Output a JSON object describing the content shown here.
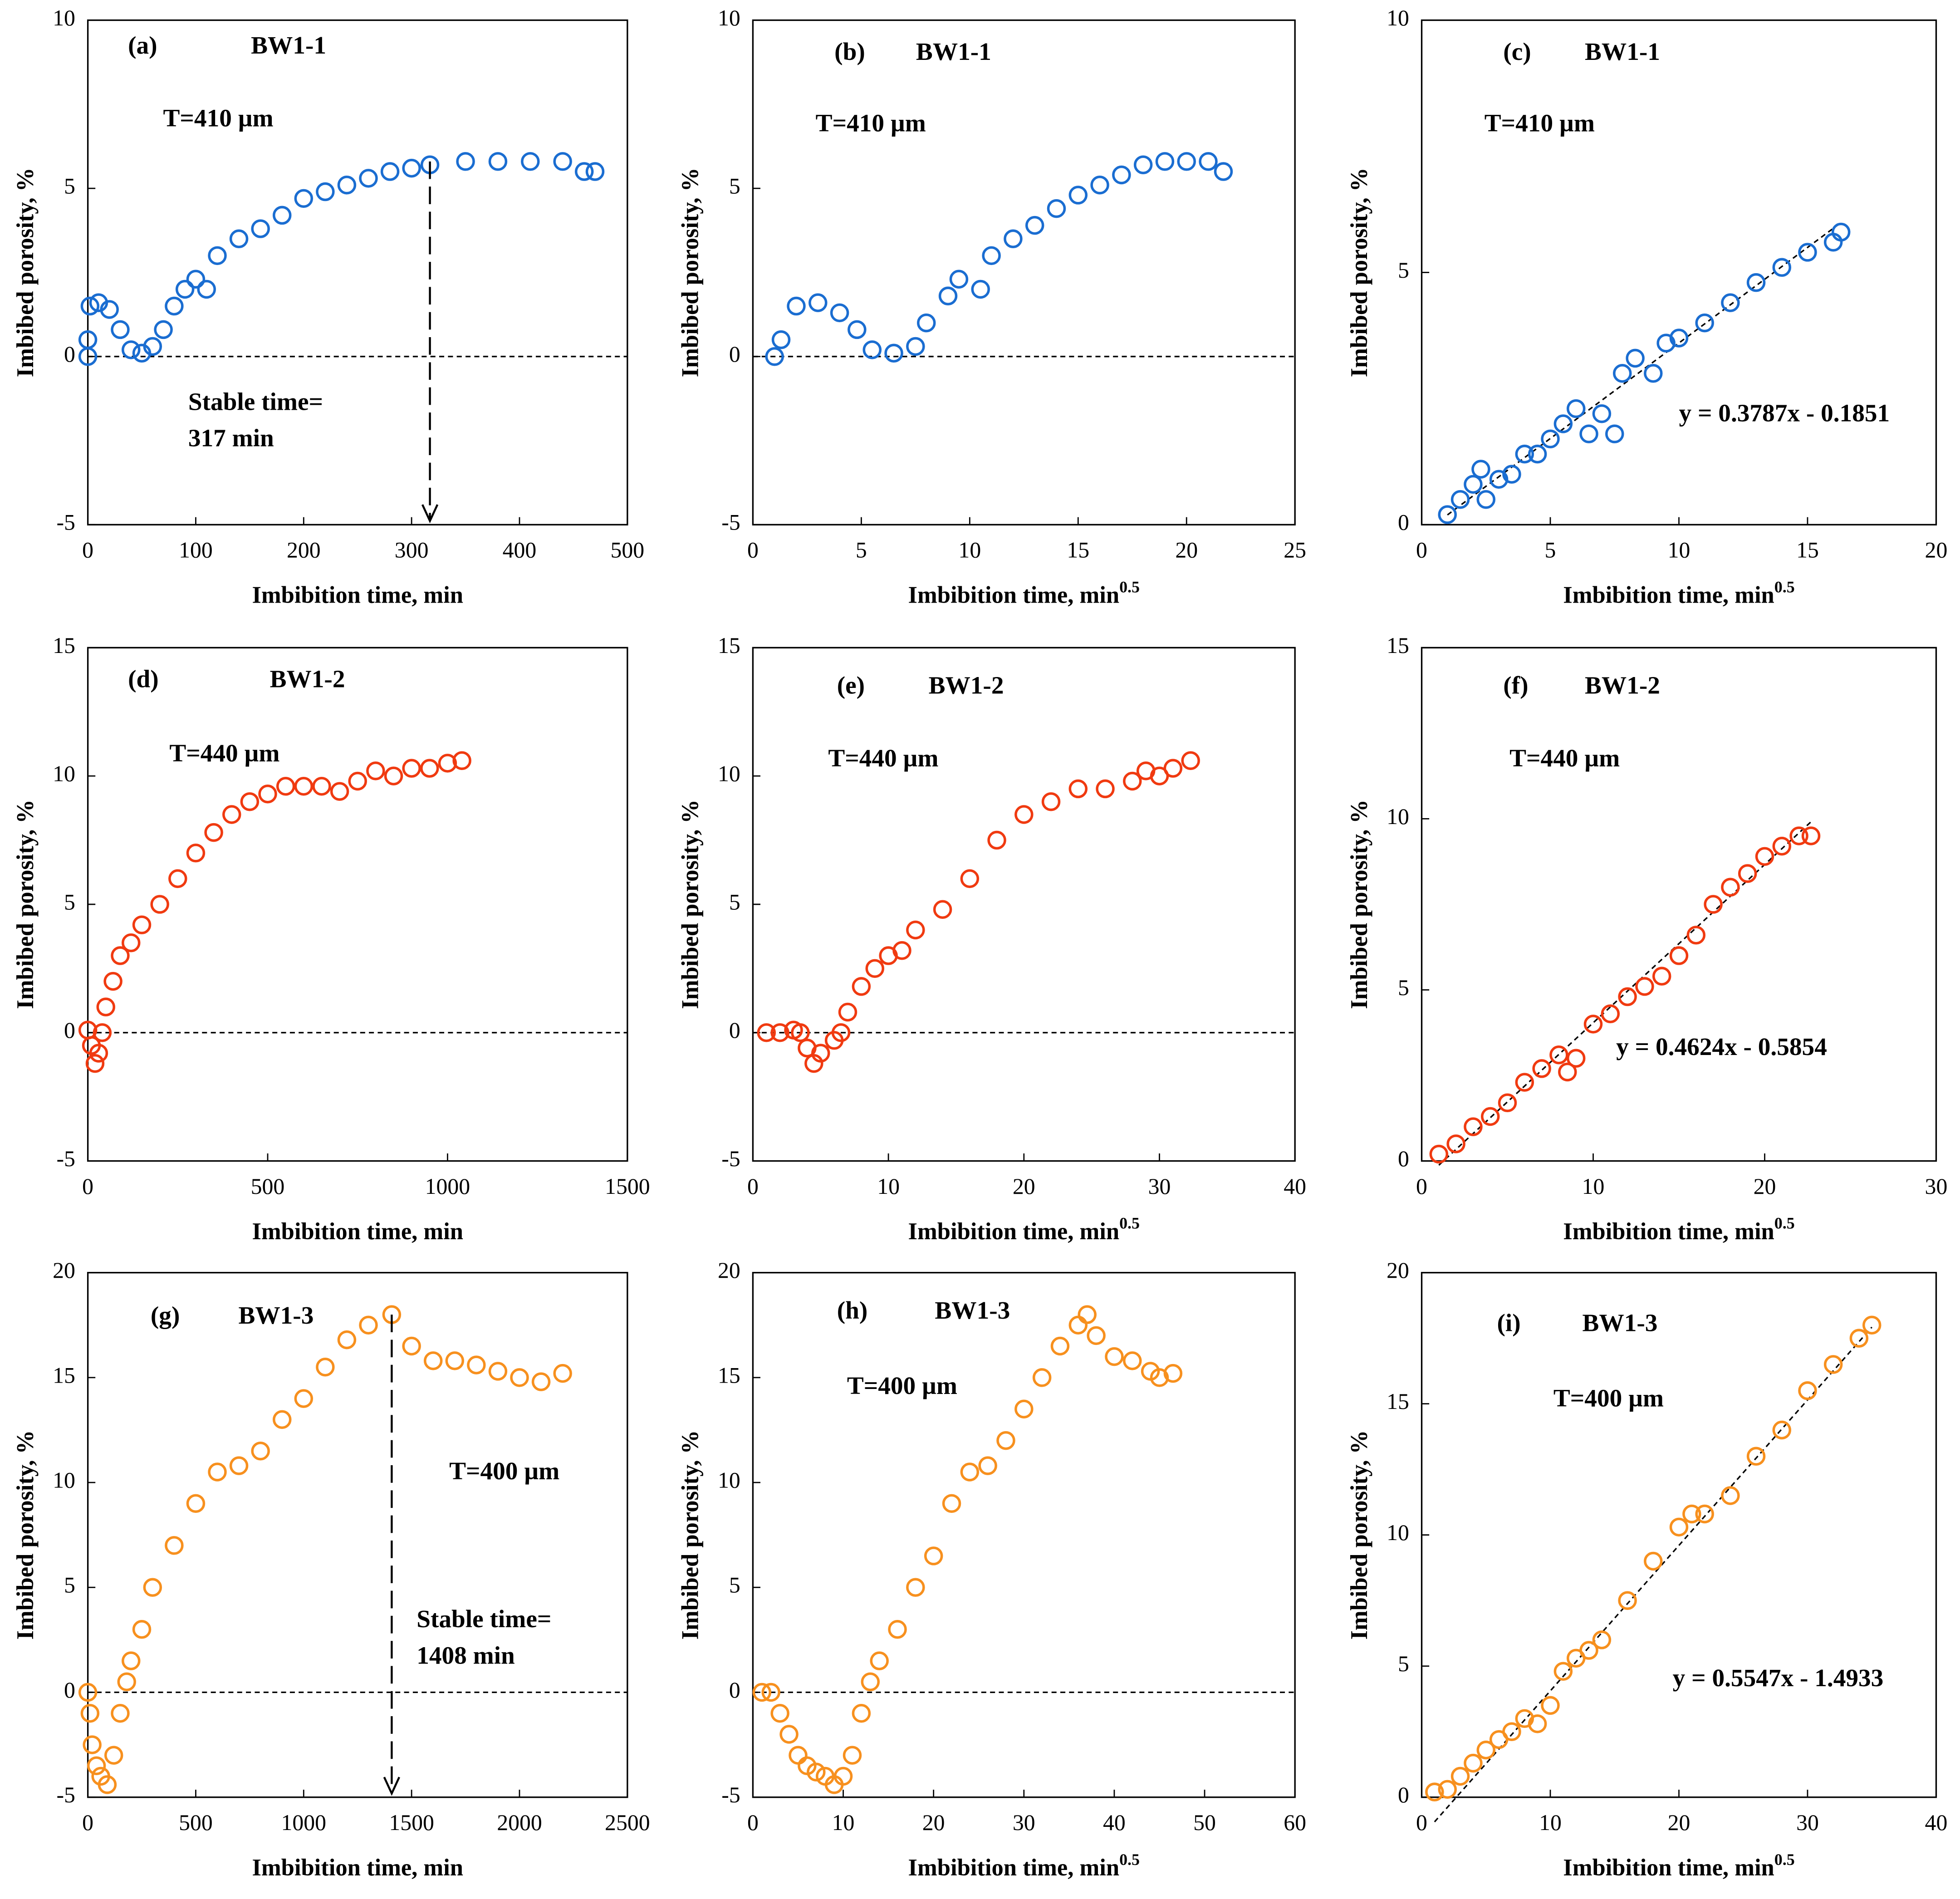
{
  "chart_data": [
    {
      "type": "scatter",
      "panel": "(a)",
      "sample": "BW1-1",
      "thickness": "T=410 µm",
      "xlabel": "Imbibition time, min",
      "ylabel": "Imbibed porosity, %",
      "color": "#1a6dd1",
      "x": [
        0,
        0,
        2,
        10,
        20,
        30,
        40,
        50,
        60,
        70,
        80,
        90,
        100,
        110,
        120,
        140,
        160,
        180,
        200,
        220,
        240,
        260,
        280,
        300,
        317,
        350,
        380,
        410,
        440,
        460,
        470
      ],
      "values": [
        0,
        0.5,
        1.5,
        1.6,
        1.4,
        0.8,
        0.2,
        0.1,
        0.3,
        0.8,
        1.5,
        2.0,
        2.3,
        2.0,
        3.0,
        3.5,
        3.8,
        4.2,
        4.7,
        4.9,
        5.1,
        5.3,
        5.5,
        5.6,
        5.7,
        5.8,
        5.8,
        5.8,
        5.8,
        5.5,
        5.5
      ],
      "xlim": [
        0,
        500
      ],
      "ylim": [
        -5,
        10
      ],
      "xticks": [
        0,
        100,
        200,
        300,
        400,
        500
      ],
      "yticks": [
        -5,
        0,
        5,
        10
      ],
      "hline": 0,
      "vline": 317,
      "annotation": [
        "Stable time=",
        "317 min"
      ]
    },
    {
      "type": "scatter",
      "panel": "(b)",
      "sample": "BW1-1",
      "thickness": "T=410 µm",
      "xlabel": "Imbibition time, min",
      "xlabel_sup": "0.5",
      "ylabel": "Imbibed porosity, %",
      "color": "#1a6dd1",
      "x": [
        1,
        1.3,
        2,
        3,
        4,
        4.8,
        5.5,
        6.5,
        7.5,
        8,
        9,
        9.5,
        10.5,
        11,
        12,
        13,
        14,
        15,
        16,
        17,
        18,
        19,
        20,
        21,
        21.7
      ],
      "values": [
        0,
        0.5,
        1.5,
        1.6,
        1.3,
        0.8,
        0.2,
        0.1,
        0.3,
        1.0,
        1.8,
        2.3,
        2.0,
        3.0,
        3.5,
        3.9,
        4.4,
        4.8,
        5.1,
        5.4,
        5.7,
        5.8,
        5.8,
        5.8,
        5.5
      ],
      "xlim": [
        0,
        25
      ],
      "ylim": [
        -5,
        10
      ],
      "xticks": [
        0,
        5,
        10,
        15,
        20,
        25
      ],
      "yticks": [
        -5,
        0,
        5,
        10
      ],
      "hline": 0
    },
    {
      "type": "scatter",
      "panel": "(c)",
      "sample": "BW1-1",
      "thickness": "T=410 µm",
      "xlabel": "Imbibition time, min",
      "xlabel_sup": "0.5",
      "ylabel": "Imbibed porosity, %",
      "color": "#1a6dd1",
      "x": [
        1,
        1.5,
        2,
        2.3,
        2.5,
        3,
        3.5,
        4,
        4.5,
        5,
        5.5,
        6,
        6.5,
        7,
        7.5,
        7.8,
        8.3,
        9,
        9.5,
        10,
        11,
        12,
        13,
        14,
        15,
        16,
        16.3
      ],
      "values": [
        0.2,
        0.5,
        0.8,
        1.1,
        0.5,
        0.9,
        1.0,
        1.4,
        1.4,
        1.7,
        2.0,
        2.3,
        1.8,
        2.2,
        1.8,
        3.0,
        3.3,
        3.0,
        3.6,
        3.7,
        4.0,
        4.4,
        4.8,
        5.1,
        5.4,
        5.6,
        5.8
      ],
      "xlim": [
        0,
        20
      ],
      "ylim": [
        0,
        10
      ],
      "xticks": [
        0,
        5,
        10,
        15,
        20
      ],
      "yticks": [
        0,
        5,
        10
      ],
      "fit": {
        "slope": 0.3787,
        "intercept": -0.1851,
        "label": "y = 0.3787x - 0.1851"
      }
    },
    {
      "type": "scatter",
      "panel": "(d)",
      "sample": "BW1-2",
      "thickness": "T=440 µm",
      "xlabel": "Imbibition time, min",
      "ylabel": "Imbibed porosity, %",
      "color": "#f03a10",
      "x": [
        0,
        10,
        20,
        30,
        40,
        50,
        70,
        90,
        120,
        150,
        200,
        250,
        300,
        350,
        400,
        450,
        500,
        550,
        600,
        650,
        700,
        750,
        800,
        850,
        900,
        950,
        1000,
        1040
      ],
      "values": [
        0.1,
        -0.5,
        -1.2,
        -0.8,
        0,
        1.0,
        2.0,
        3.0,
        3.5,
        4.2,
        5.0,
        6.0,
        7.0,
        7.8,
        8.5,
        9.0,
        9.3,
        9.6,
        9.6,
        9.6,
        9.4,
        9.8,
        10.2,
        10.0,
        10.3,
        10.3,
        10.5,
        10.6
      ],
      "xlim": [
        0,
        1500
      ],
      "ylim": [
        -5,
        15
      ],
      "xticks": [
        0,
        500,
        1000,
        1500
      ],
      "yticks": [
        -5,
        0,
        5,
        10,
        15
      ],
      "hline": 0
    },
    {
      "type": "scatter",
      "panel": "(e)",
      "sample": "BW1-2",
      "thickness": "T=440 µm",
      "xlabel": "Imbibition time, min",
      "xlabel_sup": "0.5",
      "ylabel": "Imbibed porosity, %",
      "color": "#f03a10",
      "x": [
        1,
        2,
        3,
        3.5,
        4,
        4.5,
        5,
        6,
        6.5,
        7,
        8,
        9,
        10,
        11,
        12,
        14,
        16,
        18,
        20,
        22,
        24,
        26,
        28,
        29,
        30,
        31,
        32.3
      ],
      "values": [
        0,
        0,
        0.1,
        0,
        -0.6,
        -1.2,
        -0.8,
        -0.3,
        0,
        0.8,
        1.8,
        2.5,
        3.0,
        3.2,
        4.0,
        4.8,
        6.0,
        7.5,
        8.5,
        9.0,
        9.5,
        9.5,
        9.8,
        10.2,
        10.0,
        10.3,
        10.6
      ],
      "xlim": [
        0,
        40
      ],
      "ylim": [
        -5,
        15
      ],
      "xticks": [
        0,
        10,
        20,
        30,
        40
      ],
      "yticks": [
        -5,
        0,
        5,
        10,
        15
      ],
      "hline": 0
    },
    {
      "type": "scatter",
      "panel": "(f)",
      "sample": "BW1-2",
      "thickness": "T=440 µm",
      "xlabel": "Imbibition time, min",
      "xlabel_sup": "0.5",
      "ylabel": "Imbibed porosity, %",
      "color": "#f03a10",
      "x": [
        1,
        2,
        3,
        4,
        5,
        6,
        7,
        8,
        8.5,
        9,
        10,
        11,
        12,
        13,
        14,
        15,
        16,
        17,
        18,
        19,
        20,
        21,
        22,
        22.7
      ],
      "values": [
        0.2,
        0.5,
        1.0,
        1.3,
        1.7,
        2.3,
        2.7,
        3.1,
        2.6,
        3.0,
        4.0,
        4.3,
        4.8,
        5.1,
        5.4,
        6.0,
        6.6,
        7.5,
        8.0,
        8.4,
        8.9,
        9.2,
        9.5,
        9.5
      ],
      "xlim": [
        0,
        30
      ],
      "ylim": [
        0,
        15
      ],
      "xticks": [
        0,
        10,
        20,
        30
      ],
      "yticks": [
        0,
        5,
        10,
        15
      ],
      "fit": {
        "slope": 0.4624,
        "intercept": -0.5854,
        "label": "y = 0.4624x - 0.5854"
      }
    },
    {
      "type": "scatter",
      "panel": "(g)",
      "sample": "BW1-3",
      "thickness": "T=400 µm",
      "xlabel": "Imbibition time, min",
      "ylabel": "Imbibed porosity, %",
      "color": "#f7901e",
      "x": [
        0,
        10,
        20,
        40,
        60,
        90,
        120,
        150,
        180,
        200,
        250,
        300,
        400,
        500,
        600,
        700,
        800,
        900,
        1000,
        1100,
        1200,
        1300,
        1408,
        1500,
        1600,
        1700,
        1800,
        1900,
        2000,
        2100,
        2200
      ],
      "values": [
        0,
        -1,
        -2.5,
        -3.5,
        -4,
        -4.4,
        -3,
        -1,
        0.5,
        1.5,
        3.0,
        5.0,
        7.0,
        9.0,
        10.5,
        10.8,
        11.5,
        13.0,
        14.0,
        15.5,
        16.8,
        17.5,
        18.0,
        16.5,
        15.8,
        15.8,
        15.6,
        15.3,
        15.0,
        14.8,
        15.2
      ],
      "xlim": [
        0,
        2500
      ],
      "ylim": [
        -5,
        20
      ],
      "xticks": [
        0,
        500,
        1000,
        1500,
        2000,
        2500
      ],
      "yticks": [
        -5,
        0,
        5,
        10,
        15,
        20
      ],
      "hline": 0,
      "vline": 1408,
      "annotation": [
        "Stable time=",
        "1408 min"
      ]
    },
    {
      "type": "scatter",
      "panel": "(h)",
      "sample": "BW1-3",
      "thickness": "T=400 µm",
      "xlabel": "Imbibition time, min",
      "xlabel_sup": "0.5",
      "ylabel": "Imbibed porosity, %",
      "color": "#f7901e",
      "x": [
        1,
        2,
        3,
        4,
        5,
        6,
        7,
        8,
        9,
        10,
        11,
        12,
        13,
        14,
        16,
        18,
        20,
        22,
        24,
        26,
        28,
        30,
        32,
        34,
        36,
        37,
        38,
        40,
        42,
        44,
        45,
        46.5
      ],
      "values": [
        0,
        0,
        -1,
        -2,
        -3,
        -3.5,
        -3.8,
        -4,
        -4.4,
        -4,
        -3,
        -1,
        0.5,
        1.5,
        3,
        5,
        6.5,
        9,
        10.5,
        10.8,
        12,
        13.5,
        15,
        16.5,
        17.5,
        18,
        17,
        16,
        15.8,
        15.3,
        15,
        15.2
      ],
      "xlim": [
        0,
        60
      ],
      "ylim": [
        -5,
        20
      ],
      "xticks": [
        0,
        10,
        20,
        30,
        40,
        50,
        60
      ],
      "yticks": [
        -5,
        0,
        5,
        10,
        15,
        20
      ],
      "hline": 0
    },
    {
      "type": "scatter",
      "panel": "(i)",
      "sample": "BW1-3",
      "thickness": "T=400 µm",
      "xlabel": "Imbibition time, min",
      "xlabel_sup": "0.5",
      "ylabel": "Imbibed porosity, %",
      "color": "#f7901e",
      "x": [
        1,
        2,
        3,
        4,
        5,
        6,
        7,
        8,
        9,
        10,
        11,
        12,
        13,
        14,
        16,
        18,
        20,
        21,
        22,
        24,
        26,
        28,
        30,
        32,
        34,
        35
      ],
      "values": [
        0.2,
        0.3,
        0.8,
        1.3,
        1.8,
        2.2,
        2.5,
        3,
        2.8,
        3.5,
        4.8,
        5.3,
        5.6,
        6,
        7.5,
        9,
        10.3,
        10.8,
        10.8,
        11.5,
        13,
        14,
        15.5,
        16.5,
        17.5,
        18
      ],
      "xlim": [
        0,
        40
      ],
      "ylim": [
        0,
        20
      ],
      "xticks": [
        0,
        10,
        20,
        30,
        40
      ],
      "yticks": [
        0,
        5,
        10,
        15,
        20
      ],
      "fit": {
        "slope": 0.5547,
        "intercept": -1.4933,
        "label": "y = 0.5547x - 1.4933"
      }
    }
  ]
}
